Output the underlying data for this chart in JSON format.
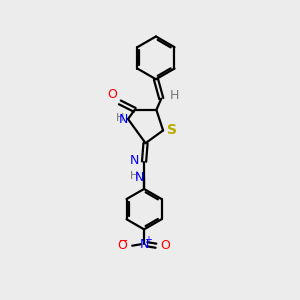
{
  "bg_color": "#ececec",
  "line_color": "black",
  "atom_colors": {
    "O": "#ff0000",
    "N": "#0000ff",
    "S": "#bbaa00",
    "H": "#777777",
    "C": "#000000"
  },
  "line_width": 1.6,
  "font_size": 9
}
